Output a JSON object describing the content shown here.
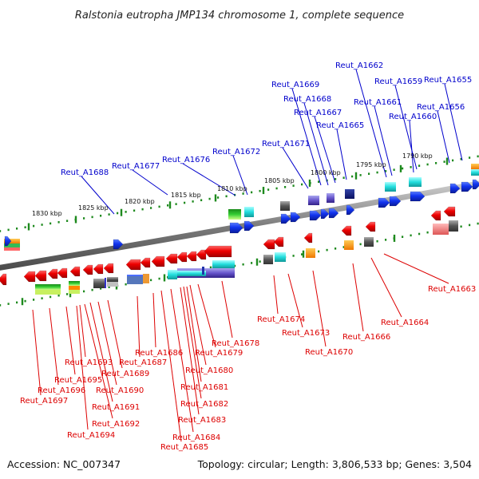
{
  "title": "Ralstonia eutropha JMP134 chromosome 1, complete sequence",
  "footer": {
    "accession": "Accession: NC_007347",
    "summary": "Topology: circular; Length: 3,806,533 bp; Genes: 3,504"
  },
  "colors": {
    "forward_label": "#0000cc",
    "reverse_label": "#dd0000",
    "backbone": "#8a8a8a",
    "tick": "#1e8a1e"
  },
  "scale": {
    "tick_labels": [
      "1830 kbp",
      "1825 kbp",
      "1820 kbp",
      "1815 kbp",
      "1810 kbp",
      "1805 kbp",
      "1800 kbp",
      "1795 kbp",
      "1790 kbp"
    ]
  },
  "genes": {
    "forward_labels": [
      "Reut_A1688",
      "Reut_A1677",
      "Reut_A1676",
      "Reut_A1672",
      "Reut_A1671",
      "Reut_A1669",
      "Reut_A1668",
      "Reut_A1667",
      "Reut_A1665",
      "Reut_A1662",
      "Reut_A1661",
      "Reut_A1660",
      "Reut_A1659",
      "Reut_A1656",
      "Reut_A1655"
    ],
    "reverse_labels": [
      "Reut_A1697",
      "Reut_A1696",
      "Reut_A1695",
      "Reut_A1694",
      "Reut_A1693",
      "Reut_A1692",
      "Reut_A1691",
      "Reut_A1690",
      "Reut_A1689",
      "Reut_A1687",
      "Reut_A1686",
      "Reut_A1685",
      "Reut_A1684",
      "Reut_A1683",
      "Reut_A1682",
      "Reut_A1681",
      "Reut_A1680",
      "Reut_A1679",
      "Reut_A1678",
      "Reut_A1674",
      "Reut_A1673",
      "Reut_A1670",
      "Reut_A1666",
      "Reut_A1664",
      "Reut_A1663"
    ]
  }
}
